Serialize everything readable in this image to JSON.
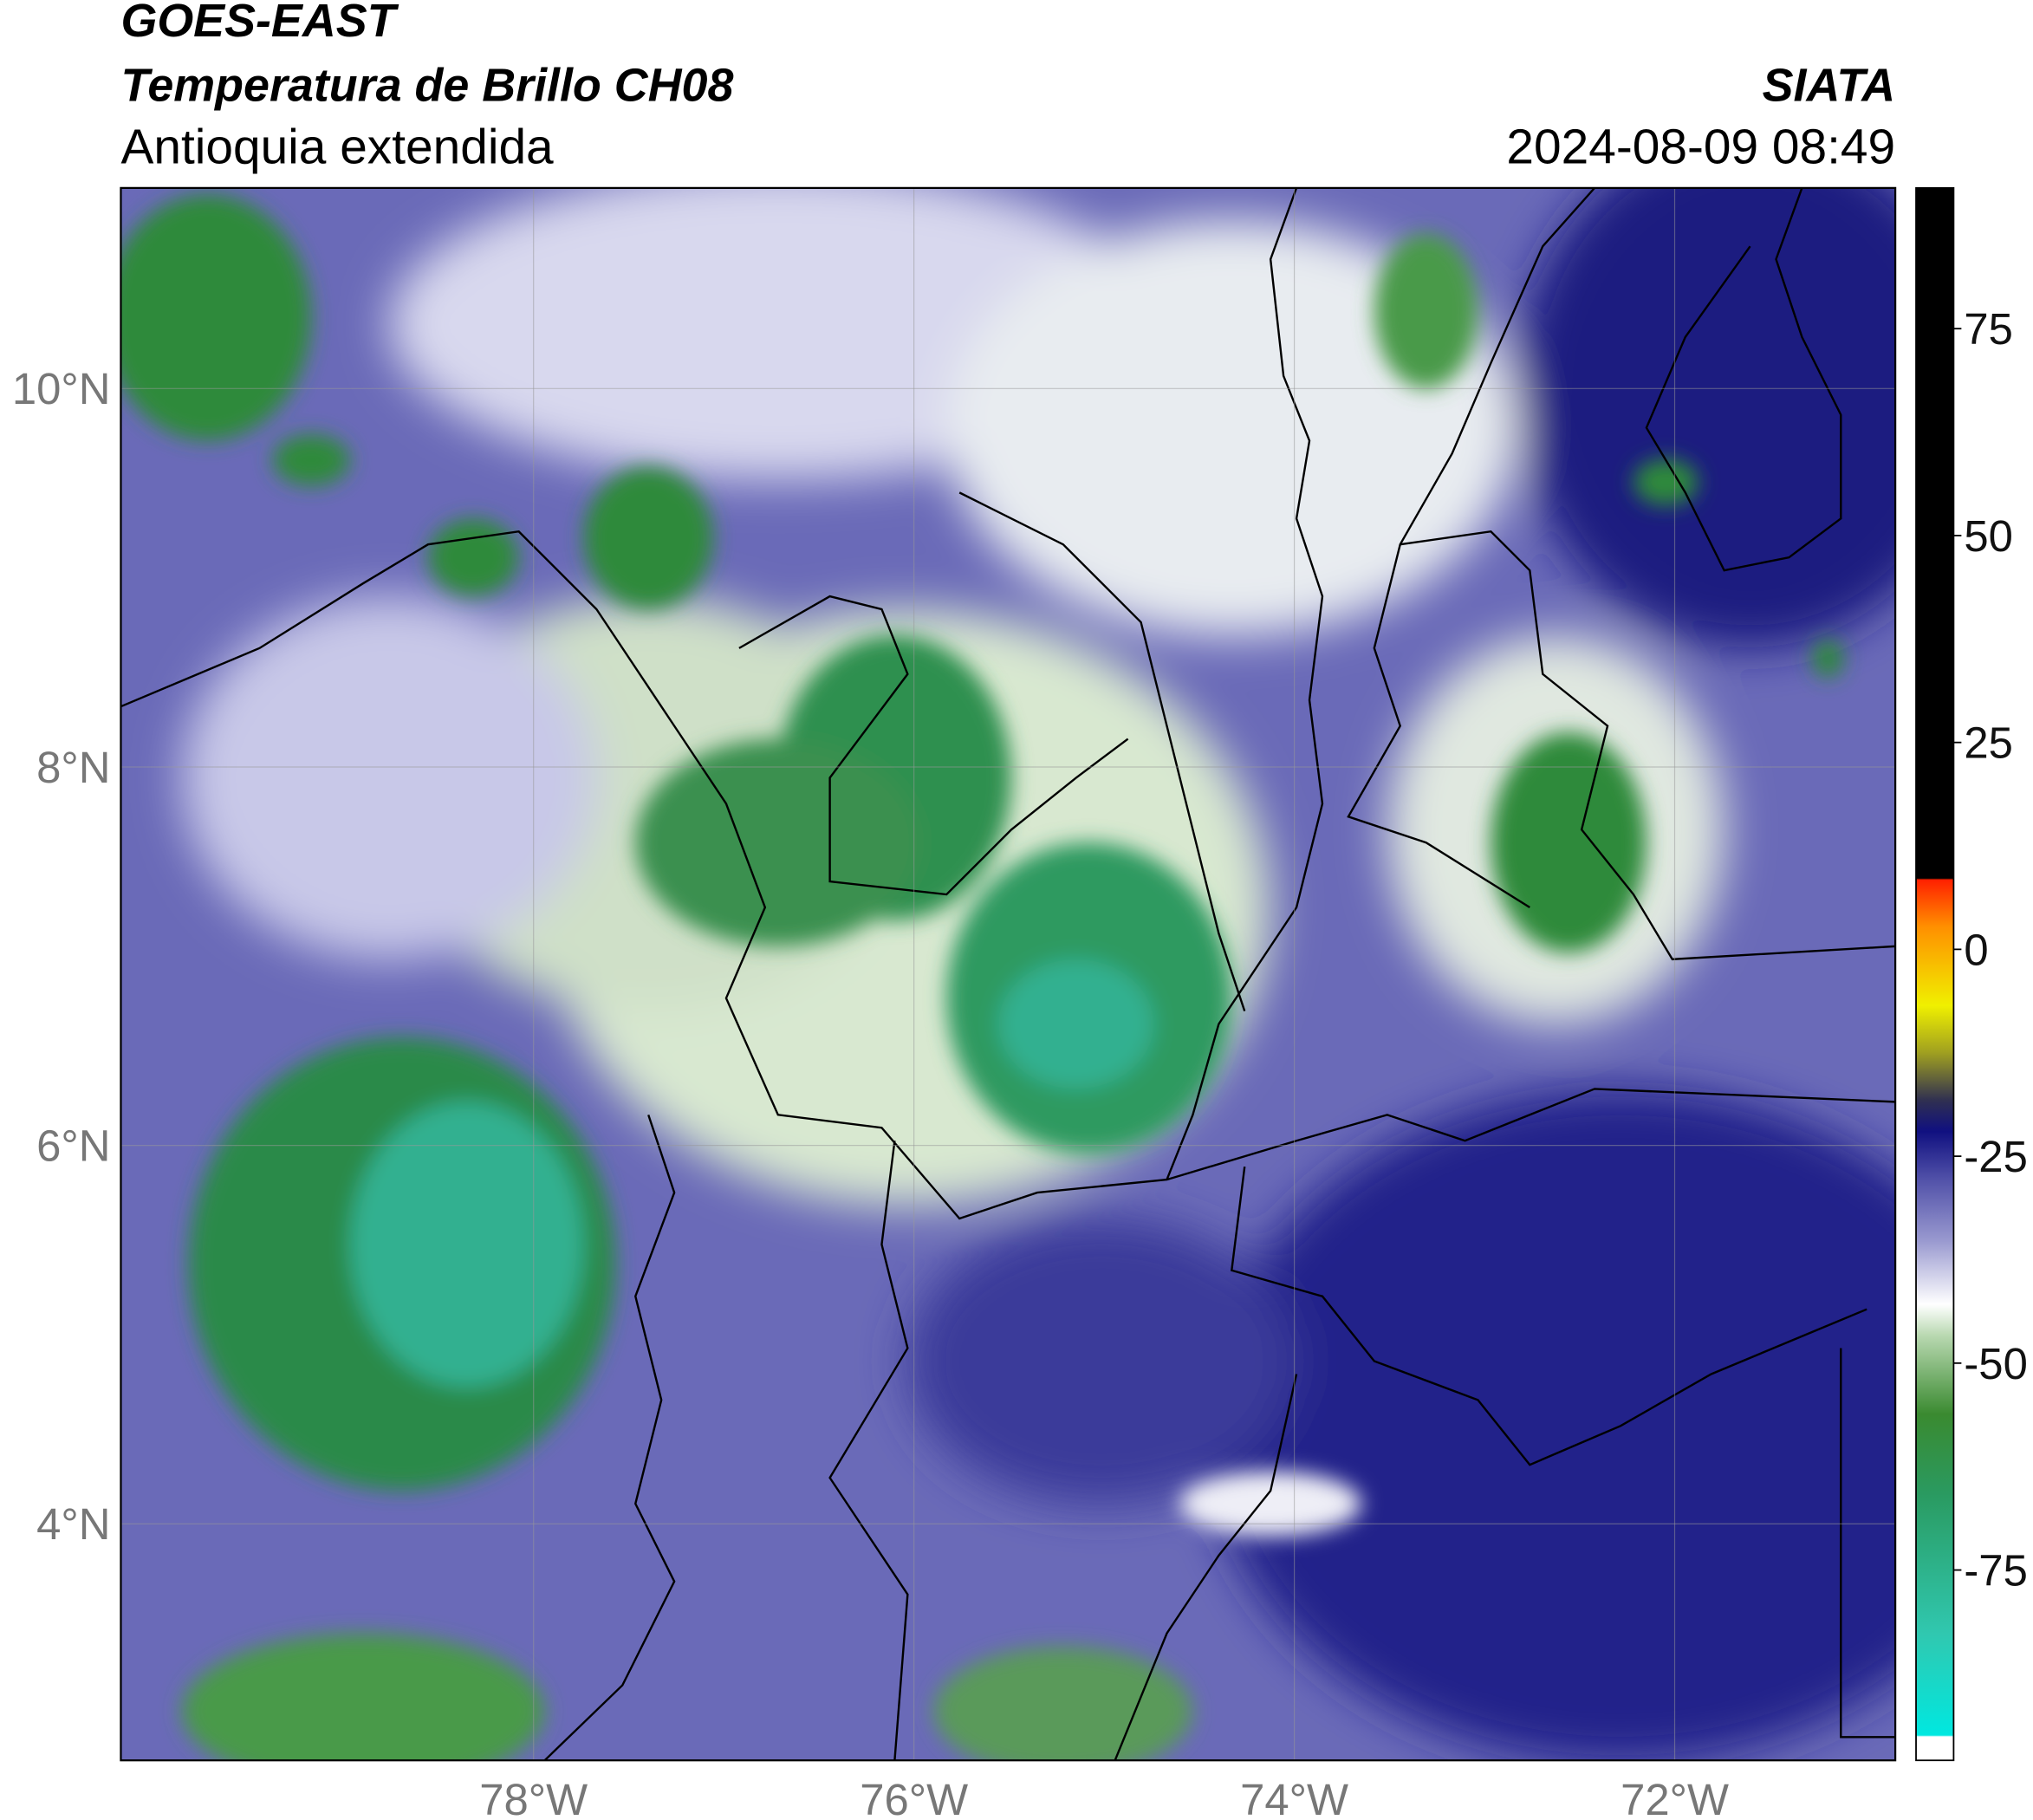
{
  "header": {
    "title": "GOES-EAST",
    "subtitle": "Temperatura de Brillo CH08",
    "region": "Antioquia extendida",
    "source": "SIATA",
    "datetime": "2024-08-09 08:49"
  },
  "map": {
    "lonlim": [
      -80.17,
      -70.84
    ],
    "latlim": [
      2.75,
      11.06
    ],
    "lonticks": [
      {
        "value": -78,
        "label": "78°W"
      },
      {
        "value": -76,
        "label": "76°W"
      },
      {
        "value": -74,
        "label": "74°W"
      },
      {
        "value": -72,
        "label": "72°W"
      }
    ],
    "latticks": [
      {
        "value": 10,
        "label": "10°N"
      },
      {
        "value": 8,
        "label": "8°N"
      },
      {
        "value": 6,
        "label": "6°N"
      },
      {
        "value": 4,
        "label": "4°N"
      }
    ],
    "grid": true
  },
  "colorbar": {
    "lim": [
      -98,
      92
    ],
    "ticks": [
      75,
      50,
      25,
      0,
      -25,
      -50,
      -75
    ]
  }
}
